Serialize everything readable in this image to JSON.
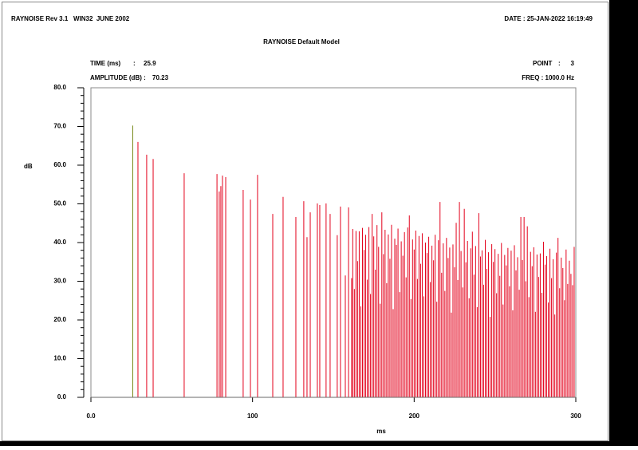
{
  "chart_data": {
    "type": "impulse",
    "header_left": "RAYNOISE Rev 3.1   WIN32  JUNE 2002",
    "header_right": "DATE : 25-JAN-2022 16:19:49",
    "title": "RAYNOISE Default Model",
    "cursor": {
      "time_label": "TIME (ms)",
      "sep1": ":",
      "time": 25.9,
      "amplitude_label": "AMPLITUDE (dB) :",
      "amplitude": 70.23,
      "point_label": "POINT",
      "sep2": ":",
      "point": 3,
      "freq": "FREQ : 1000.0 Hz",
      "color": "#7a8a1e"
    },
    "y_label": "dB",
    "x_label": "ms",
    "color": "#e3001b",
    "xlim": [
      0,
      300
    ],
    "xticks": [
      {
        "value": 0,
        "label": "0.0"
      },
      100,
      200,
      300
    ],
    "ylim": [
      0,
      80
    ],
    "yticks": [
      {
        "value": 0,
        "label": "0.0"
      },
      {
        "value": 10,
        "label": "10.0"
      },
      {
        "value": 20,
        "label": "20.0"
      },
      {
        "value": 30,
        "label": "30.0"
      },
      {
        "value": 40,
        "label": "40.0"
      },
      {
        "value": 50,
        "label": "50.0"
      },
      {
        "value": 60,
        "label": "60.0"
      },
      {
        "value": 70,
        "label": "70.0"
      },
      {
        "value": 80,
        "label": "80.0"
      }
    ],
    "y_minor_ticks": [
      2,
      4,
      6,
      8,
      12,
      14,
      16,
      18,
      22,
      24,
      26,
      28,
      32,
      34,
      36,
      38,
      42,
      44,
      46,
      48,
      52,
      54,
      56,
      58,
      62,
      64,
      66,
      68,
      72,
      74,
      76,
      78
    ],
    "x": [
      29.1,
      34.5,
      38.5,
      57.7,
      78.0,
      79.4,
      80.4,
      81.4,
      83.4,
      94.2,
      98.7,
      103.1,
      112.5,
      118.9,
      126.8,
      131.7,
      133.7,
      135.7,
      140.1,
      141.6,
      145.5,
      148.0,
      152.4,
      154.4,
      157.4,
      159.4,
      161.3,
      162,
      163,
      164,
      165,
      166,
      167,
      168,
      169,
      170,
      171,
      172,
      173,
      174,
      175,
      176,
      177,
      178,
      179,
      180,
      181,
      182,
      183,
      184,
      185,
      186,
      187,
      188,
      189,
      190,
      191,
      192,
      193,
      194,
      195,
      196,
      197,
      198,
      199,
      200,
      201,
      202,
      203,
      204,
      205,
      206,
      207,
      208,
      209,
      210,
      211,
      212,
      213,
      214,
      215,
      216,
      217,
      218,
      219,
      220,
      221,
      222,
      223,
      224,
      225,
      226,
      227,
      228,
      229,
      230,
      231,
      232,
      233,
      234,
      235,
      236,
      237,
      238,
      239,
      240,
      241,
      242,
      243,
      244,
      245,
      246,
      247,
      248,
      249,
      250,
      251,
      252,
      253,
      254,
      255,
      256,
      257,
      258,
      259,
      260,
      261,
      262,
      263,
      264,
      265,
      266,
      267,
      268,
      269,
      270,
      271,
      272,
      273,
      274,
      275,
      276,
      277,
      278,
      279,
      280,
      281,
      282,
      283,
      284,
      285,
      286,
      287,
      288,
      289,
      290,
      291,
      292,
      293,
      294,
      295,
      296,
      297,
      298,
      299
    ],
    "values": [
      66.0,
      62.7,
      61.6,
      57.9,
      57.7,
      53.2,
      54.6,
      57.3,
      56.9,
      53.6,
      51.1,
      57.5,
      47.4,
      51.8,
      46.6,
      50.7,
      41.4,
      47.8,
      50.1,
      49.7,
      50.1,
      47.4,
      41.9,
      49.3,
      31.5,
      49.1,
      30.8,
      43.5,
      28.0,
      43.0,
      35.2,
      42.9,
      23.5,
      43.8,
      38.1,
      42.0,
      30.4,
      44.0,
      26.7,
      47.4,
      41.6,
      33.0,
      44.5,
      38.9,
      24.2,
      47.8,
      37.0,
      43.3,
      29.5,
      42.1,
      35.8,
      44.6,
      22.8,
      41.0,
      39.4,
      43.6,
      27.2,
      40.3,
      36.6,
      42.7,
      31.0,
      43.9,
      47.0,
      25.4,
      40.8,
      38.2,
      43.1,
      30.6,
      41.7,
      34.5,
      42.4,
      26.1,
      40.0,
      37.3,
      41.5,
      29.8,
      39.2,
      35.4,
      42.0,
      24.7,
      40.6,
      50.5,
      32.2,
      39.8,
      27.5,
      41.2,
      36.0,
      38.7,
      21.9,
      39.5,
      33.6,
      45.1,
      30.3,
      50.5,
      37.8,
      28.4,
      48.7,
      34.9,
      40.4,
      25.6,
      38.5,
      42.8,
      31.7,
      39.1,
      23.3,
      47.6,
      36.4,
      38.0,
      29.1,
      40.7,
      33.2,
      37.5,
      20.8,
      39.6,
      35.0,
      38.3,
      26.9,
      37.1,
      31.4,
      39.9,
      24.0,
      36.8,
      34.1,
      38.6,
      28.7,
      37.9,
      22.5,
      39.3,
      32.8,
      36.2,
      27.8,
      46.6,
      35.5,
      46.6,
      30.0,
      44.2,
      25.9,
      37.6,
      33.9,
      38.8,
      22.1,
      36.9,
      31.1,
      37.2,
      27.0,
      40.2,
      34.3,
      36.5,
      24.5,
      38.4,
      30.8,
      35.7,
      21.4,
      37.4,
      41.2,
      28.2,
      36.1,
      33.4,
      25.1,
      38.2,
      29.3,
      35.3,
      31.9,
      29.0,
      38.9
    ]
  }
}
